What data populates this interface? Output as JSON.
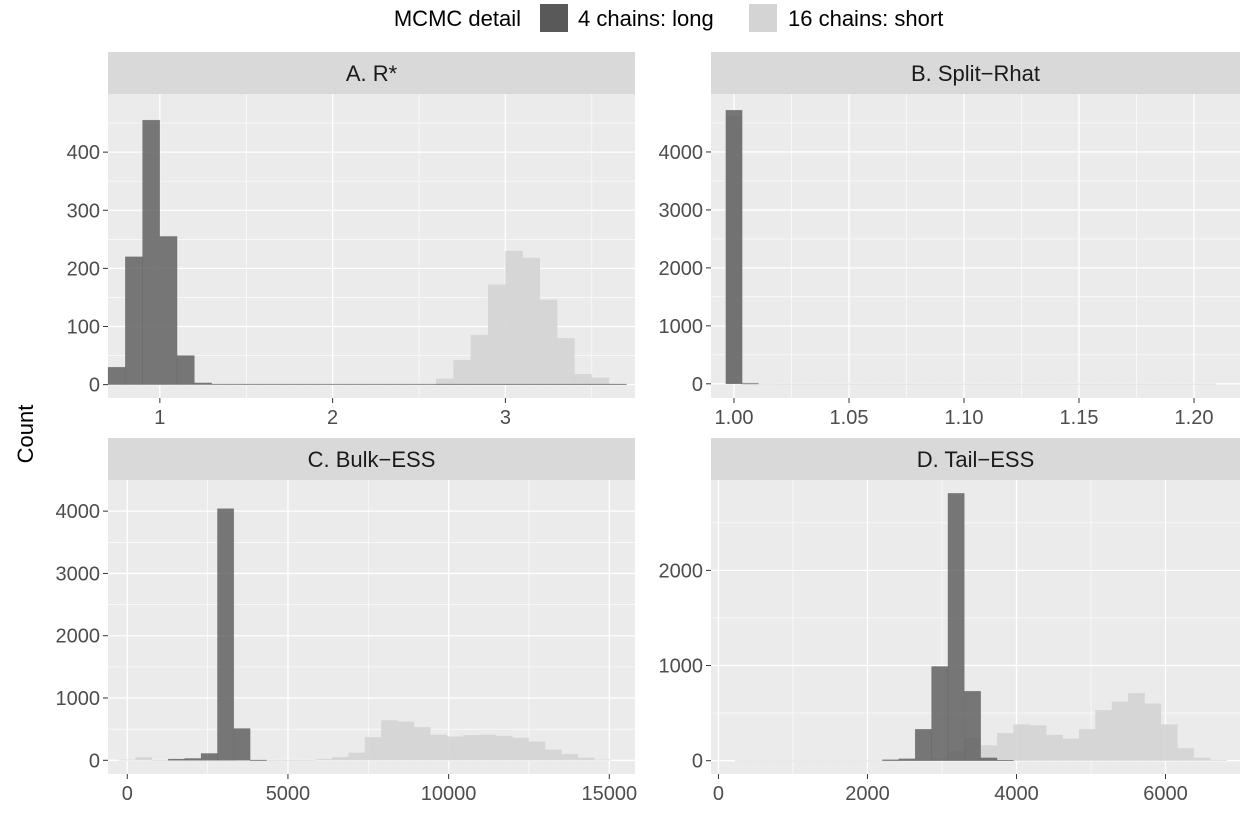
{
  "figure": {
    "ylabel": "Count",
    "legend": {
      "title": "MCMC detail",
      "position": "top",
      "entries": [
        {
          "label": "4 chains: long",
          "color": "#595959"
        },
        {
          "label": "16 chains: short",
          "color": "#d4d4d4"
        }
      ]
    },
    "colors": {
      "panel_background": "#ebebeb",
      "strip_background": "#d9d9d9",
      "grid": "#ffffff",
      "long_fill": "#595959",
      "short_fill": "#d4d4d4",
      "overlap_fill": "#9e9e9e"
    }
  },
  "chart_data": [
    {
      "type": "bar",
      "title": "A. R*",
      "xlim": [
        0.7,
        3.75
      ],
      "ylim": [
        -23,
        500
      ],
      "xticks": [
        1,
        2,
        3
      ],
      "xtick_labels": [
        "1",
        "2",
        "3"
      ],
      "yticks": [
        0,
        100,
        200,
        300,
        400
      ],
      "ytick_labels": [
        "0",
        "100",
        "200",
        "300",
        "400"
      ],
      "bin_width": 0.1,
      "bins": [
        0.75,
        0.85,
        0.95,
        1.05,
        1.15,
        1.25,
        1.35,
        1.45,
        1.55,
        1.65,
        1.75,
        1.85,
        1.95,
        2.05,
        2.15,
        2.25,
        2.35,
        2.45,
        2.55,
        2.65,
        2.75,
        2.85,
        2.95,
        3.05,
        3.15,
        3.25,
        3.35,
        3.45,
        3.55,
        3.65
      ],
      "series": [
        {
          "name": "4 chains: long",
          "values": [
            30,
            220,
            455,
            255,
            50,
            3,
            1,
            1,
            1,
            1,
            1,
            1,
            1,
            1,
            1,
            1,
            1,
            1,
            1,
            1,
            1,
            1,
            1,
            1,
            1,
            1,
            1,
            1,
            1,
            1
          ]
        },
        {
          "name": "16 chains: short",
          "values": [
            0,
            0,
            0,
            0,
            0,
            0,
            0,
            0,
            0,
            0,
            0,
            0,
            0,
            0,
            0,
            0,
            0,
            0,
            0,
            10,
            42,
            85,
            172,
            230,
            218,
            146,
            80,
            18,
            12,
            1
          ]
        }
      ]
    },
    {
      "type": "bar",
      "title": "B. Split−Rhat",
      "xlim": [
        0.99,
        1.22
      ],
      "ylim": [
        -245,
        5000
      ],
      "xticks": [
        1.0,
        1.05,
        1.1,
        1.15,
        1.2
      ],
      "xtick_labels": [
        "1.00",
        "1.05",
        "1.10",
        "1.15",
        "1.20"
      ],
      "yticks": [
        0,
        1000,
        2000,
        3000,
        4000
      ],
      "ytick_labels": [
        "0",
        "1000",
        "2000",
        "3000",
        "4000"
      ],
      "bin_width": 0.0071,
      "bins": [
        1.0,
        1.0071,
        1.0142,
        1.0213,
        1.0284,
        1.0355,
        1.0426,
        1.0497,
        1.0568,
        1.0639,
        1.071,
        1.0781,
        1.0852,
        1.0923,
        1.0994,
        1.1065,
        1.1136,
        1.1207,
        1.1278,
        1.1349,
        1.142,
        1.1491,
        1.1562,
        1.1633,
        1.1704,
        1.1775,
        1.1846,
        1.1917,
        1.1988,
        1.2059
      ],
      "series": [
        {
          "name": "4 chains: long",
          "values": [
            4720,
            5,
            0,
            0,
            0,
            0,
            0,
            0,
            0,
            0,
            0,
            0,
            0,
            0,
            0,
            0,
            0,
            0,
            0,
            0,
            0,
            0,
            0,
            0,
            0,
            0,
            0,
            0,
            0,
            0
          ]
        },
        {
          "name": "16 chains: short",
          "values": [
            4620,
            20,
            3,
            1,
            1,
            1,
            1,
            1,
            1,
            1,
            1,
            1,
            1,
            1,
            1,
            1,
            1,
            1,
            1,
            1,
            1,
            1,
            1,
            1,
            1,
            1,
            1,
            1,
            1,
            1
          ]
        }
      ]
    },
    {
      "type": "bar",
      "title": "C. Bulk−ESS",
      "xlim": [
        -600,
        15800
      ],
      "ylim": [
        -220,
        4500
      ],
      "xticks": [
        0,
        5000,
        10000,
        15000
      ],
      "xtick_labels": [
        "0",
        "5000",
        "10000",
        "15000"
      ],
      "yticks": [
        0,
        1000,
        2000,
        3000,
        4000
      ],
      "ytick_labels": [
        "0",
        "1000",
        "2000",
        "3000",
        "4000"
      ],
      "bin_width": 510,
      "bins": [
        0,
        510,
        1020,
        1530,
        2040,
        2550,
        3060,
        3570,
        4080,
        4590,
        5100,
        5610,
        6120,
        6630,
        7140,
        7650,
        8160,
        8670,
        9180,
        9690,
        10200,
        10710,
        11220,
        11730,
        12240,
        12750,
        13260,
        13770,
        14280,
        14790
      ],
      "series": [
        {
          "name": "4 chains: long",
          "values": [
            0,
            0,
            0,
            20,
            30,
            110,
            4040,
            510,
            5,
            0,
            0,
            0,
            0,
            0,
            0,
            0,
            0,
            0,
            0,
            0,
            0,
            0,
            0,
            0,
            0,
            0,
            0,
            0,
            0,
            0
          ]
        },
        {
          "name": "16 chains: short",
          "values": [
            10,
            50,
            5,
            5,
            5,
            5,
            5,
            10,
            5,
            5,
            5,
            5,
            20,
            50,
            120,
            370,
            640,
            620,
            530,
            410,
            380,
            400,
            410,
            390,
            360,
            300,
            170,
            100,
            40,
            10
          ]
        }
      ]
    },
    {
      "type": "bar",
      "title": "D. Tail−ESS",
      "xlim": [
        -100,
        7000
      ],
      "ylim": [
        -140,
        2950
      ],
      "xticks": [
        0,
        2000,
        4000,
        6000
      ],
      "xtick_labels": [
        "0",
        "2000",
        "4000",
        "6000"
      ],
      "yticks": [
        0,
        1000,
        2000
      ],
      "ytick_labels": [
        "0",
        "1000",
        "2000"
      ],
      "bin_width": 220,
      "bins": [
        330,
        550,
        770,
        990,
        1210,
        1430,
        1650,
        1870,
        2090,
        2310,
        2530,
        2750,
        2970,
        3190,
        3410,
        3630,
        3850,
        4070,
        4290,
        4510,
        4730,
        4950,
        5170,
        5390,
        5610,
        5830,
        6050,
        6270,
        6490,
        6710
      ],
      "series": [
        {
          "name": "4 chains: long",
          "values": [
            0,
            0,
            0,
            0,
            0,
            0,
            0,
            0,
            0,
            10,
            20,
            330,
            990,
            2810,
            730,
            30,
            5,
            0,
            0,
            0,
            0,
            0,
            0,
            0,
            0,
            0,
            0,
            0,
            0,
            0
          ]
        },
        {
          "name": "16 chains: short",
          "values": [
            1,
            1,
            1,
            1,
            1,
            1,
            1,
            1,
            1,
            1,
            3,
            5,
            20,
            100,
            240,
            160,
            290,
            380,
            370,
            270,
            230,
            330,
            530,
            620,
            710,
            600,
            380,
            130,
            30,
            5
          ]
        }
      ]
    }
  ]
}
